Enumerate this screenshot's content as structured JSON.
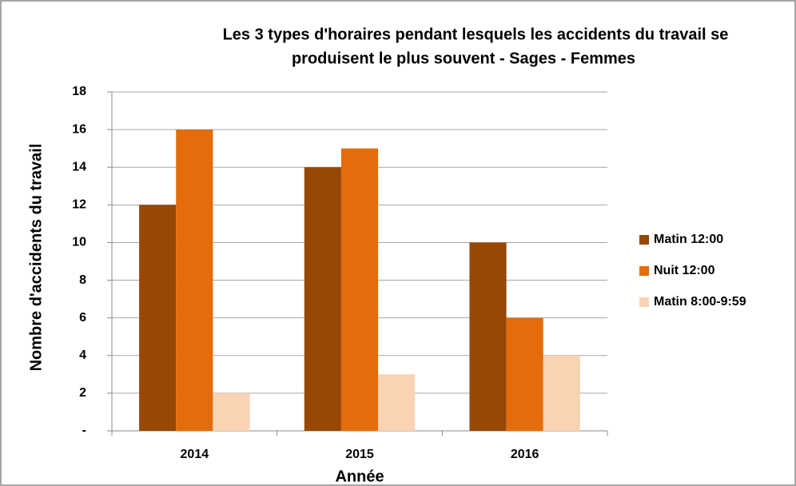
{
  "chart_data": {
    "type": "bar",
    "title": [
      "Les 3 types d'horaires pendant lesquels les accidents du travail se",
      "produisent le plus souvent  -  Sages - Femmes"
    ],
    "x_label": "Année",
    "y_label": "Nombre d'accidents du travail",
    "categories": [
      "2014",
      "2015",
      "2016"
    ],
    "series": [
      {
        "name": "Matin 12:00",
        "color": "#974706",
        "values": [
          12,
          14,
          10
        ]
      },
      {
        "name": "Nuit 12:00",
        "color": "#E46C0A",
        "values": [
          16,
          15,
          6
        ]
      },
      {
        "name": "Matin 8:00-9:59",
        "color": "#FAD3B3",
        "values": [
          2,
          3,
          4
        ]
      }
    ],
    "ylim": [
      0,
      18
    ],
    "yticks": [
      {
        "value": 0,
        "label": "-"
      },
      2,
      4,
      6,
      8,
      10,
      12,
      14,
      16,
      18
    ],
    "grid": true,
    "legend": "right"
  }
}
